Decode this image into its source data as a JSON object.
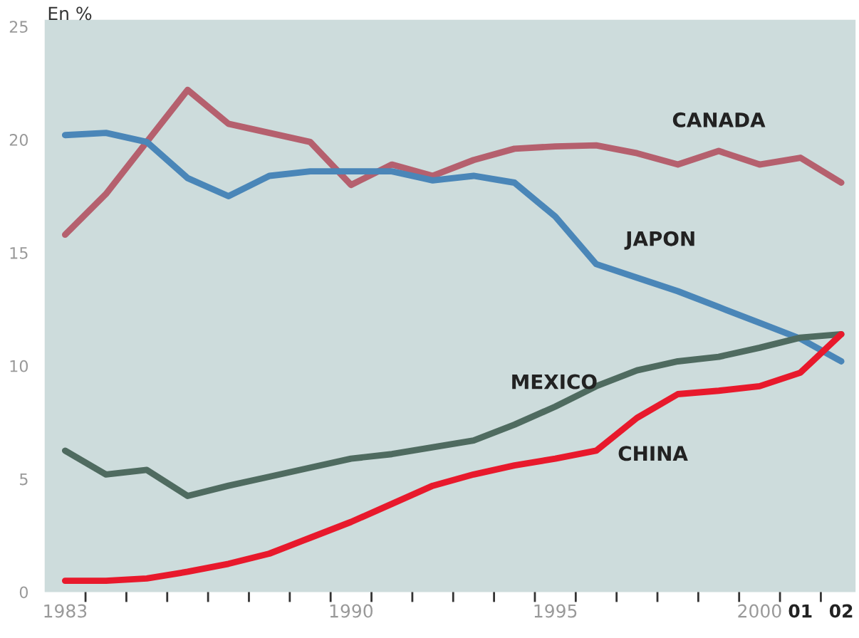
{
  "chart_data": {
    "type": "line",
    "ylabel": "En %",
    "x": [
      1983,
      1984,
      1985,
      1986,
      1987,
      1988,
      1989,
      1990,
      1991,
      1992,
      1993,
      1994,
      1995,
      1996,
      1997,
      1998,
      1999,
      2000,
      2001,
      2002
    ],
    "series": [
      {
        "name": "CANADA",
        "color": "#b5606e",
        "values": [
          15.8,
          17.6,
          19.9,
          22.2,
          20.7,
          20.3,
          19.9,
          18.0,
          18.9,
          18.4,
          19.1,
          19.6,
          19.7,
          19.75,
          19.4,
          18.9,
          19.5,
          18.9,
          19.2,
          18.1
        ]
      },
      {
        "name": "JAPON",
        "color": "#4a86b8",
        "values": [
          20.2,
          20.3,
          19.9,
          18.3,
          17.5,
          18.4,
          18.6,
          18.6,
          18.6,
          18.2,
          18.4,
          18.1,
          16.6,
          14.5,
          13.9,
          13.3,
          12.6,
          11.9,
          11.2,
          10.2
        ]
      },
      {
        "name": "MEXICO",
        "color": "#4f6b60",
        "values": [
          6.25,
          5.2,
          5.4,
          4.25,
          4.7,
          5.1,
          5.5,
          5.9,
          6.1,
          6.4,
          6.7,
          7.4,
          8.2,
          9.1,
          9.8,
          10.2,
          10.4,
          10.8,
          11.25,
          11.4
        ]
      },
      {
        "name": "CHINA",
        "color": "#e8192c",
        "values": [
          0.5,
          0.5,
          0.6,
          0.9,
          1.25,
          1.7,
          2.4,
          3.1,
          3.9,
          4.7,
          5.2,
          5.6,
          5.9,
          6.25,
          7.7,
          8.75,
          8.9,
          9.1,
          9.7,
          11.4
        ]
      }
    ],
    "xlim": [
      1982.5,
      2002.35
    ],
    "ylim": [
      0,
      25.3
    ],
    "xticks": [
      {
        "value": 1983,
        "label": "1983"
      },
      {
        "value": 1983.5,
        "label": null
      },
      {
        "value": 1984.5,
        "label": null
      },
      {
        "value": 1985.5,
        "label": null
      },
      {
        "value": 1986.5,
        "label": null
      },
      {
        "value": 1987.5,
        "label": null
      },
      {
        "value": 1988.5,
        "label": null
      },
      {
        "value": 1989.5,
        "label": null
      },
      {
        "value": 1990,
        "label": "1990"
      },
      {
        "value": 1990.5,
        "label": null
      },
      {
        "value": 1991.5,
        "label": null
      },
      {
        "value": 1992.5,
        "label": null
      },
      {
        "value": 1993.5,
        "label": null
      },
      {
        "value": 1994.5,
        "label": null
      },
      {
        "value": 1995,
        "label": "1995"
      },
      {
        "value": 1995.5,
        "label": null
      },
      {
        "value": 1996.5,
        "label": null
      },
      {
        "value": 1997.5,
        "label": null
      },
      {
        "value": 1998.5,
        "label": null
      },
      {
        "value": 1999.5,
        "label": null
      },
      {
        "value": 2000,
        "label": "2000"
      },
      {
        "value": 2000.5,
        "label": null
      },
      {
        "value": 2001,
        "label": "01"
      },
      {
        "value": 2001.5,
        "label": null
      },
      {
        "value": 2002,
        "label": "02"
      }
    ],
    "yticks": [
      0,
      5,
      10,
      15,
      20,
      25
    ],
    "grid": false,
    "legend": false,
    "marker": "none",
    "line_style": "solid"
  }
}
